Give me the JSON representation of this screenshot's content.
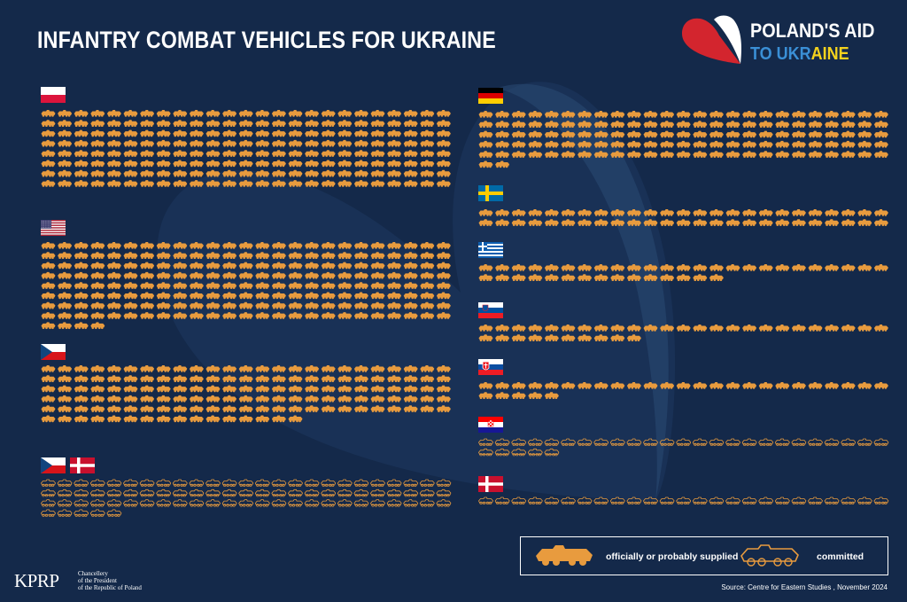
{
  "title": "INFANTRY COMBAT VEHICLES FOR UKRAINE",
  "logo": {
    "line1": "POLAND'S AID",
    "line2": "TO UKRAINE",
    "line2_split": [
      "TO UKR",
      "AINE"
    ],
    "colors": {
      "blue": "#3a8fd6",
      "yellow": "#f4d21d",
      "red": "#d3252e"
    }
  },
  "colors": {
    "background": "#14294a",
    "supplied": "#e89b3e",
    "committed": "#e89b3e",
    "text": "#ffffff"
  },
  "chart_data": {
    "type": "pictogram",
    "title": "INFANTRY COMBAT VEHICLES FOR UKRAINE",
    "unit": "one icon = one vehicle",
    "series_legend": [
      {
        "status": "supplied",
        "label": "officially or probably supplied",
        "icon": "filled-vehicle-icon"
      },
      {
        "status": "committed",
        "label": "committed",
        "icon": "outline-vehicle-icon"
      }
    ],
    "groups": [
      {
        "country": "Poland",
        "flags": [
          "poland"
        ],
        "status": "supplied",
        "count": 200
      },
      {
        "country": "United States",
        "flags": [
          "usa"
        ],
        "status": "supplied",
        "count": 204
      },
      {
        "country": "Czech Republic",
        "flags": [
          "czech"
        ],
        "status": "supplied",
        "count": 141
      },
      {
        "country": "Czech Republic / Denmark",
        "flags": [
          "czech",
          "denmark"
        ],
        "status": "committed",
        "count": 80
      },
      {
        "country": "Germany",
        "flags": [
          "germany"
        ],
        "status": "supplied",
        "count": 127
      },
      {
        "country": "Sweden",
        "flags": [
          "sweden"
        ],
        "status": "supplied",
        "count": 50
      },
      {
        "country": "Greece",
        "flags": [
          "greece"
        ],
        "status": "supplied",
        "count": 40
      },
      {
        "country": "Slovenia",
        "flags": [
          "slovenia"
        ],
        "status": "supplied",
        "count": 35
      },
      {
        "country": "Slovakia",
        "flags": [
          "slovakia"
        ],
        "status": "supplied",
        "count": 30
      },
      {
        "country": "Croatia",
        "flags": [
          "croatia"
        ],
        "status": "committed",
        "count": 30
      },
      {
        "country": "Denmark",
        "flags": [
          "denmark"
        ],
        "status": "committed",
        "count": 25
      }
    ]
  },
  "legend": {
    "supplied_label": "officially or probably supplied",
    "committed_label": "committed"
  },
  "source": "Source: Centre for Eastern Studies , November 2024",
  "footer": {
    "kprp": "KPRP",
    "chancellery_lines": [
      "Chancellery",
      "of the President",
      "of the Republic of Poland"
    ]
  }
}
